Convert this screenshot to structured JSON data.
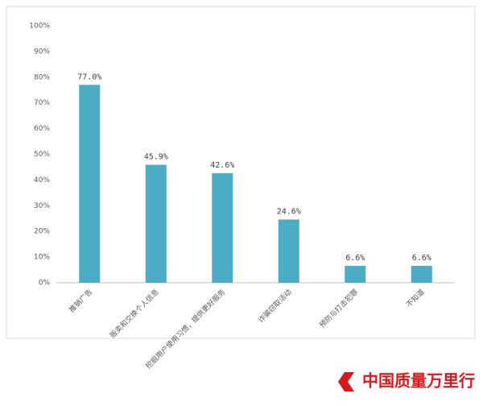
{
  "chart_data": {
    "type": "bar",
    "categories": [
      "推销广告",
      "贩卖和交换个人信息",
      "挖掘用户使用习惯，提供更好服务",
      "诈骗窃取活动",
      "预防与打击犯罪",
      "不知道"
    ],
    "values": [
      77.0,
      45.9,
      42.6,
      24.6,
      6.6,
      6.6
    ],
    "value_labels": [
      "77.0%",
      "45.9%",
      "42.6%",
      "24.6%",
      "6.6%",
      "6.6%"
    ],
    "color": "#4bacc6",
    "ylim": [
      0,
      100
    ],
    "yticks": [
      {
        "value": 0,
        "label": "0%"
      },
      {
        "value": 10,
        "label": "10%"
      },
      {
        "value": 20,
        "label": "20%"
      },
      {
        "value": 30,
        "label": "30%"
      },
      {
        "value": 40,
        "label": "40%"
      },
      {
        "value": 50,
        "label": "50%"
      },
      {
        "value": 60,
        "label": "60%"
      },
      {
        "value": 70,
        "label": "70%"
      },
      {
        "value": 80,
        "label": "80%"
      },
      {
        "value": 90,
        "label": "90%"
      },
      {
        "value": 100,
        "label": "100%"
      }
    ],
    "grid": false
  },
  "watermark": "中国质量万里行"
}
